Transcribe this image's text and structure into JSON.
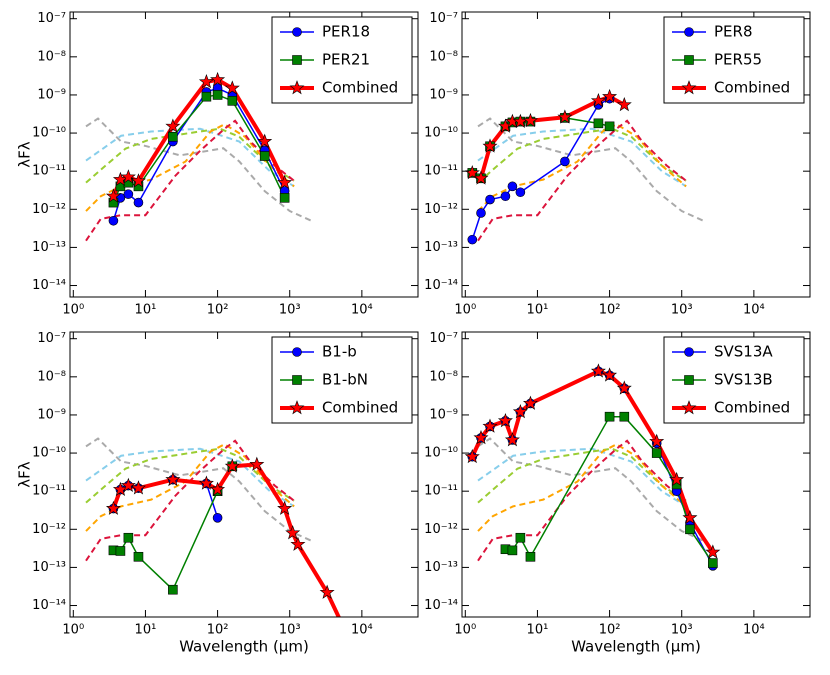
{
  "reference_curves": [
    {
      "color": "#aaaaaa",
      "linestyle": "dashed",
      "x": [
        1.5,
        2.2,
        4.6,
        10,
        30,
        80,
        120,
        200,
        450,
        1000,
        2000
      ],
      "values": [
        1.5e-10,
        2.4e-10,
        6e-11,
        4.6e-11,
        2.6e-11,
        3.5e-11,
        4e-11,
        1.8e-11,
        3e-12,
        9e-13,
        5e-13
      ]
    },
    {
      "color": "#87ceeb",
      "linestyle": "dashed",
      "x": [
        1.5,
        4.6,
        12,
        57,
        200,
        530,
        1150
      ],
      "values": [
        1.9e-11,
        8.5e-11,
        1.1e-10,
        1.3e-10,
        6e-11,
        1e-11,
        4e-12
      ]
    },
    {
      "color": "#9acd32",
      "linestyle": "dashed",
      "x": [
        1.5,
        2.8,
        5.3,
        12,
        57,
        108,
        200,
        530,
        1150
      ],
      "values": [
        5e-12,
        1.4e-11,
        3.9e-11,
        7e-11,
        1.1e-10,
        1.3e-10,
        8e-11,
        1.4e-11,
        5.6e-12
      ]
    },
    {
      "color": "#ffa500",
      "linestyle": "dashed",
      "x": [
        1.5,
        2.4,
        4.6,
        12,
        36,
        80,
        125,
        240,
        530,
        1150
      ],
      "values": [
        9e-13,
        2.2e-12,
        4e-12,
        6e-12,
        1.8e-11,
        1.1e-10,
        1.7e-10,
        8e-11,
        1.4e-11,
        4e-12
      ]
    },
    {
      "color": "#dc143c",
      "linestyle": "dashed",
      "x": [
        1.5,
        2.4,
        4.6,
        10,
        26,
        57,
        125,
        175,
        280,
        620,
        1150
      ],
      "values": [
        1.5e-13,
        5.6e-13,
        7e-13,
        7e-13,
        7.6e-12,
        3.4e-11,
        1.3e-10,
        2.1e-10,
        6.2e-11,
        1.4e-11,
        5.6e-12
      ]
    }
  ],
  "chart_data": [
    {
      "type": "line",
      "ylabel": "λFλ",
      "legend": "upper right",
      "xlim": [
        0.9,
        60000
      ],
      "ylim": [
        5e-15,
        1.5e-07
      ],
      "xticks": [
        {
          "value": 1,
          "label": "10⁰"
        },
        {
          "value": 10,
          "label": "10¹"
        },
        {
          "value": 100,
          "label": "10²"
        },
        {
          "value": 1000,
          "label": "10³"
        },
        {
          "value": 10000,
          "label": "10⁴"
        }
      ],
      "yticks": [
        {
          "value": 1e-14,
          "label": "10⁻¹⁴"
        },
        {
          "value": 1e-13,
          "label": "10⁻¹³"
        },
        {
          "value": 1e-12,
          "label": "10⁻¹²"
        },
        {
          "value": 1e-11,
          "label": "10⁻¹¹"
        },
        {
          "value": 1e-10,
          "label": "10⁻¹⁰"
        },
        {
          "value": 1e-09,
          "label": "10⁻⁹"
        },
        {
          "value": 1e-08,
          "label": "10⁻⁸"
        },
        {
          "value": 1e-07,
          "label": "10⁻⁷"
        }
      ],
      "series": [
        {
          "name": "PER18",
          "color": "#0000ff",
          "marker": "circle",
          "x": [
            3.6,
            4.5,
            5.8,
            8,
            24,
            70,
            100,
            160,
            450,
            850
          ],
          "values": [
            5e-13,
            2e-12,
            2.5e-12,
            1.5e-12,
            6e-11,
            1.2e-09,
            1.5e-09,
            1e-09,
            3.5e-11,
            3e-12
          ]
        },
        {
          "name": "PER21",
          "color": "#008000",
          "marker": "square",
          "x": [
            3.6,
            4.5,
            5.8,
            8,
            24,
            70,
            100,
            160,
            450,
            850
          ],
          "values": [
            1.5e-12,
            4e-12,
            5e-12,
            4e-12,
            8e-11,
            9e-10,
            1e-09,
            7e-10,
            2.5e-11,
            2e-12
          ]
        },
        {
          "name": "Combined",
          "color": "#ff0000",
          "marker": "star",
          "x": [
            3.6,
            4.5,
            5.8,
            8,
            24,
            70,
            100,
            160,
            450,
            850
          ],
          "values": [
            2.2e-12,
            6e-12,
            7e-12,
            5.5e-12,
            1.5e-10,
            2.2e-09,
            2.5e-09,
            1.5e-09,
            6e-11,
            5e-12
          ]
        }
      ]
    },
    {
      "type": "line",
      "legend": "upper right",
      "xlim": [
        0.9,
        60000
      ],
      "ylim": [
        5e-15,
        1.5e-07
      ],
      "xticks": [
        {
          "value": 1,
          "label": "10⁰"
        },
        {
          "value": 10,
          "label": "10¹"
        },
        {
          "value": 100,
          "label": "10²"
        },
        {
          "value": 1000,
          "label": "10³"
        },
        {
          "value": 10000,
          "label": "10⁴"
        }
      ],
      "yticks": [
        {
          "value": 1e-14,
          "label": "10⁻¹⁴"
        },
        {
          "value": 1e-13,
          "label": "10⁻¹³"
        },
        {
          "value": 1e-12,
          "label": "10⁻¹²"
        },
        {
          "value": 1e-11,
          "label": "10⁻¹¹"
        },
        {
          "value": 1e-10,
          "label": "10⁻¹⁰"
        },
        {
          "value": 1e-09,
          "label": "10⁻⁹"
        },
        {
          "value": 1e-08,
          "label": "10⁻⁸"
        },
        {
          "value": 1e-07,
          "label": "10⁻⁷"
        }
      ],
      "series": [
        {
          "name": "PER8",
          "color": "#0000ff",
          "marker": "circle",
          "x": [
            1.25,
            1.65,
            2.2,
            3.6,
            4.5,
            5.8,
            24,
            70,
            100
          ],
          "values": [
            1.6e-13,
            8e-13,
            1.8e-12,
            2.2e-12,
            4e-12,
            2.8e-12,
            1.8e-11,
            5.5e-10,
            8e-10
          ]
        },
        {
          "name": "PER55",
          "color": "#008000",
          "marker": "square",
          "x": [
            1.25,
            1.65,
            2.2,
            3.6,
            4.5,
            5.8,
            8,
            24,
            70,
            100
          ],
          "values": [
            9e-12,
            6.5e-12,
            4.5e-11,
            1.5e-10,
            1.9e-10,
            2e-10,
            2e-10,
            2.5e-10,
            1.8e-10,
            1.5e-10
          ]
        },
        {
          "name": "Combined",
          "color": "#ff0000",
          "marker": "star",
          "x": [
            1.25,
            1.65,
            2.2,
            3.6,
            4.5,
            5.8,
            8,
            24,
            70,
            100,
            160
          ],
          "values": [
            9e-12,
            6.5e-12,
            4.5e-11,
            1.5e-10,
            2e-10,
            2e-10,
            2.1e-10,
            2.6e-10,
            7e-10,
            9e-10,
            5.5e-10
          ]
        }
      ]
    },
    {
      "type": "line",
      "xlabel": "Wavelength (μm)",
      "ylabel": "λFλ",
      "legend": "upper right",
      "xlim": [
        0.9,
        60000
      ],
      "ylim": [
        5e-15,
        1.5e-07
      ],
      "xticks": [
        {
          "value": 1,
          "label": "10⁰"
        },
        {
          "value": 10,
          "label": "10¹"
        },
        {
          "value": 100,
          "label": "10²"
        },
        {
          "value": 1000,
          "label": "10³"
        },
        {
          "value": 10000,
          "label": "10⁴"
        }
      ],
      "yticks": [
        {
          "value": 1e-14,
          "label": "10⁻¹⁴"
        },
        {
          "value": 1e-13,
          "label": "10⁻¹³"
        },
        {
          "value": 1e-12,
          "label": "10⁻¹²"
        },
        {
          "value": 1e-11,
          "label": "10⁻¹¹"
        },
        {
          "value": 1e-10,
          "label": "10⁻¹⁰"
        },
        {
          "value": 1e-09,
          "label": "10⁻⁹"
        },
        {
          "value": 1e-08,
          "label": "10⁻⁸"
        },
        {
          "value": 1e-07,
          "label": "10⁻⁷"
        }
      ],
      "series": [
        {
          "name": "B1-b",
          "color": "#0000ff",
          "marker": "circle",
          "x": [
            3.6,
            4.5,
            5.8,
            8,
            24,
            70,
            100
          ],
          "values": [
            3.5e-12,
            1.1e-11,
            1.4e-11,
            1.2e-11,
            2e-11,
            1.6e-11,
            2e-12
          ]
        },
        {
          "name": "B1-bN",
          "color": "#008000",
          "marker": "square",
          "x": [
            3.6,
            4.5,
            5.8,
            8,
            24,
            100,
            160
          ],
          "values": [
            2.8e-13,
            2.7e-13,
            6e-13,
            1.9e-13,
            2.6e-14,
            1e-11,
            4.5e-11
          ]
        },
        {
          "name": "Combined",
          "color": "#ff0000",
          "marker": "star",
          "x": [
            3.6,
            4.5,
            5.8,
            8,
            24,
            70,
            100,
            160,
            350,
            850,
            1100,
            1300,
            3300,
            6000
          ],
          "values": [
            3.5e-12,
            1.1e-11,
            1.4e-11,
            1.2e-11,
            2e-11,
            1.6e-11,
            1.1e-11,
            4.5e-11,
            5e-11,
            3.5e-12,
            8e-13,
            4e-13,
            2.2e-14,
            2e-15
          ]
        }
      ]
    },
    {
      "type": "line",
      "xlabel": "Wavelength (μm)",
      "legend": "upper right",
      "xlim": [
        0.9,
        60000
      ],
      "ylim": [
        5e-15,
        1.5e-07
      ],
      "xticks": [
        {
          "value": 1,
          "label": "10⁰"
        },
        {
          "value": 10,
          "label": "10¹"
        },
        {
          "value": 100,
          "label": "10²"
        },
        {
          "value": 1000,
          "label": "10³"
        },
        {
          "value": 10000,
          "label": "10⁴"
        }
      ],
      "yticks": [
        {
          "value": 1e-14,
          "label": "10⁻¹⁴"
        },
        {
          "value": 1e-13,
          "label": "10⁻¹³"
        },
        {
          "value": 1e-12,
          "label": "10⁻¹²"
        },
        {
          "value": 1e-11,
          "label": "10⁻¹¹"
        },
        {
          "value": 1e-10,
          "label": "10⁻¹⁰"
        },
        {
          "value": 1e-09,
          "label": "10⁻⁹"
        },
        {
          "value": 1e-08,
          "label": "10⁻⁸"
        },
        {
          "value": 1e-07,
          "label": "10⁻⁷"
        }
      ],
      "series": [
        {
          "name": "SVS13A",
          "color": "#0000ff",
          "marker": "circle",
          "x": [
            1.25,
            1.65,
            2.2,
            3.6,
            4.5,
            5.8,
            8,
            70,
            100,
            160,
            450,
            850,
            1300,
            2700
          ],
          "values": [
            8e-11,
            2.5e-10,
            5e-10,
            7e-10,
            2.2e-10,
            1.2e-09,
            2e-09,
            1.4e-08,
            1.1e-08,
            5e-09,
            1.8e-10,
            1e-11,
            1.5e-12,
            1.1e-13
          ]
        },
        {
          "name": "SVS13B",
          "color": "#008000",
          "marker": "square",
          "x": [
            3.6,
            4.5,
            5.8,
            8,
            100,
            160,
            450,
            850,
            1300,
            2700
          ],
          "values": [
            3e-13,
            2.8e-13,
            6e-13,
            1.9e-13,
            9e-10,
            9e-10,
            1e-10,
            1.5e-11,
            1e-12,
            1.3e-13
          ]
        },
        {
          "name": "Combined",
          "color": "#ff0000",
          "marker": "star",
          "x": [
            1.25,
            1.65,
            2.2,
            3.6,
            4.5,
            5.8,
            8,
            70,
            100,
            160,
            450,
            850,
            1300,
            2700
          ],
          "values": [
            8e-11,
            2.5e-10,
            5e-10,
            7e-10,
            2.2e-10,
            1.2e-09,
            2e-09,
            1.4e-08,
            1.1e-08,
            5e-09,
            2e-10,
            2e-11,
            2e-12,
            2.5e-13
          ]
        }
      ]
    }
  ]
}
